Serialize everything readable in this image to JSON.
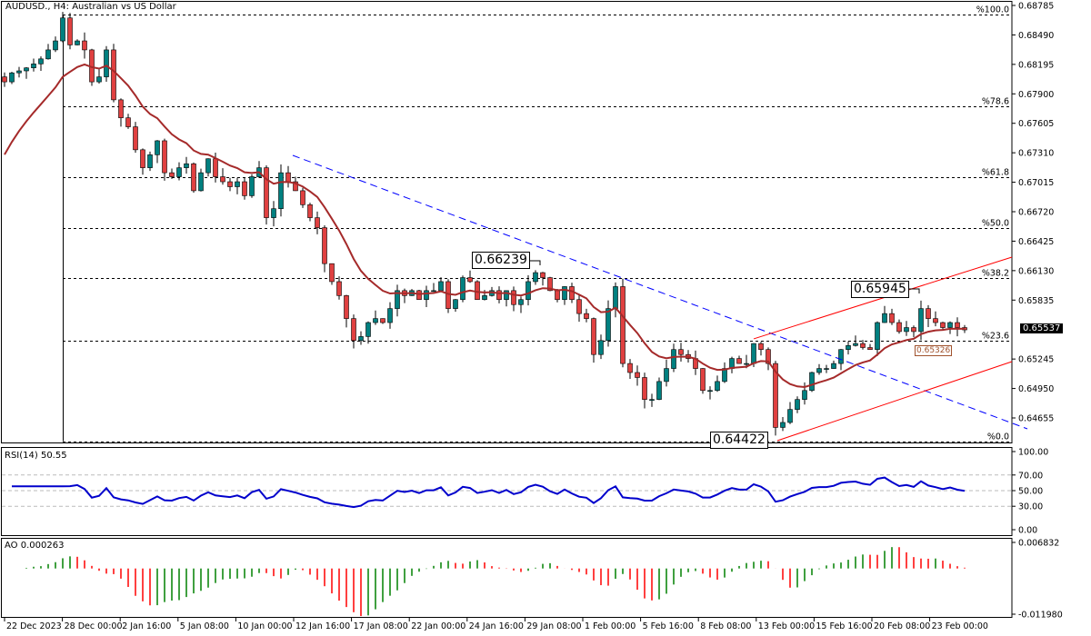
{
  "header": {
    "symbol": "AUDUSD.",
    "timeframe": "H4",
    "description": "Australian vs US Dollar",
    "title": "AUDUSD., H4:  Australian vs US Dollar"
  },
  "chart_data": [
    {
      "type": "candlestick",
      "title": "AUDUSD., H4:  Australian vs US Dollar",
      "ylim": [
        0.6442,
        0.68785
      ],
      "y_ticks": [
        "0.68785",
        "0.68490",
        "0.68195",
        "0.67900",
        "0.67605",
        "0.67310",
        "0.67015",
        "0.66720",
        "0.66425",
        "0.66130",
        "0.65835",
        "0.65245",
        "0.64950",
        "0.64655"
      ],
      "x_ticks": [
        "22 Dec 2023",
        "28 Dec 00:00",
        "2 Jan 16:00",
        "5 Jan 08:00",
        "10 Jan 00:00",
        "12 Jan 16:00",
        "17 Jan 08:00",
        "22 Jan 00:00",
        "24 Jan 16:00",
        "29 Jan 08:00",
        "1 Feb 00:00",
        "5 Feb 16:00",
        "8 Feb 08:00",
        "13 Feb 00:00",
        "15 Feb 16:00",
        "20 Feb 08:00",
        "23 Feb 00:00"
      ],
      "closes": [
        0.6802,
        0.6811,
        0.6813,
        0.6816,
        0.682,
        0.6825,
        0.6834,
        0.6843,
        0.6866,
        0.6839,
        0.6843,
        0.6834,
        0.6802,
        0.6807,
        0.6834,
        0.6784,
        0.6766,
        0.6757,
        0.6734,
        0.6716,
        0.6729,
        0.6743,
        0.6711,
        0.6707,
        0.6716,
        0.672,
        0.6693,
        0.6711,
        0.6725,
        0.6707,
        0.6702,
        0.6697,
        0.6702,
        0.6688,
        0.6707,
        0.6716,
        0.6666,
        0.6675,
        0.6711,
        0.6702,
        0.6693,
        0.6679,
        0.6666,
        0.6656,
        0.662,
        0.6602,
        0.6588,
        0.6565,
        0.6543,
        0.6547,
        0.6561,
        0.6565,
        0.6561,
        0.6575,
        0.6593,
        0.6588,
        0.6593,
        0.6584,
        0.6593,
        0.6593,
        0.6602,
        0.6575,
        0.6584,
        0.6606,
        0.6602,
        0.6584,
        0.6588,
        0.6593,
        0.6584,
        0.6593,
        0.6579,
        0.6584,
        0.6602,
        0.6611,
        0.6606,
        0.6593,
        0.6584,
        0.6597,
        0.6584,
        0.657,
        0.6565,
        0.6529,
        0.6543,
        0.6575,
        0.6597,
        0.652,
        0.6511,
        0.6506,
        0.6484,
        0.6484,
        0.6502,
        0.6515,
        0.6534,
        0.6529,
        0.6525,
        0.6515,
        0.6493,
        0.6493,
        0.6502,
        0.6515,
        0.6525,
        0.652,
        0.652,
        0.654,
        0.6534,
        0.652,
        0.6456,
        0.6461,
        0.6474,
        0.6484,
        0.6493,
        0.6511,
        0.6515,
        0.6515,
        0.652,
        0.6534,
        0.6538,
        0.654,
        0.6536,
        0.6534,
        0.6561,
        0.657,
        0.6561,
        0.6552,
        0.6556,
        0.6552,
        0.6575,
        0.6565,
        0.6561,
        0.6556,
        0.6561,
        0.6556,
        0.65537
      ],
      "current_price": "0.65537",
      "ma_value": "0.65326",
      "fibonacci": {
        "high": 0.68694,
        "low": 0.64422,
        "levels": [
          {
            "pct": 1.0,
            "label": "%100.0"
          },
          {
            "pct": 0.786,
            "label": "%78.6"
          },
          {
            "pct": 0.618,
            "label": "%61.8"
          },
          {
            "pct": 0.5,
            "label": "%50.0"
          },
          {
            "pct": 0.382,
            "label": "%38.2"
          },
          {
            "pct": 0.236,
            "label": "%23.6"
          },
          {
            "pct": 0.0,
            "label": "%0.0"
          }
        ]
      },
      "annotations": [
        "0.66239",
        "0.65945",
        "0.64422"
      ],
      "trendline_down": {
        "from": 0.67284,
        "to": 0.64546,
        "color": "#0000ff"
      },
      "channel_upper": {
        "from": 0.65447,
        "to": 0.66265,
        "color": "#ff0000"
      },
      "channel_lower": {
        "from": 0.64428,
        "to": 0.65219,
        "color": "#ff0000"
      },
      "colors": {
        "bull": "#008080",
        "bear": "#e04040",
        "ma": "#a52a2a"
      }
    },
    {
      "type": "line",
      "title": "RSI(14) 50.55",
      "ylim": [
        0,
        100
      ],
      "y_ticks": [
        "100.00",
        "70.00",
        "50.00",
        "30.00",
        "0.00"
      ],
      "levels": [
        70,
        50,
        30
      ],
      "last": "50.55",
      "color": "#0000cc"
    },
    {
      "type": "bar",
      "title": "AO 0.000263",
      "ylim": [
        -0.01198,
        0.006832
      ],
      "y_ticks": [
        "0.006832",
        "-0.011980"
      ],
      "last": "0.000263",
      "colors": {
        "up": "#008000",
        "down": "#ff0000"
      }
    }
  ]
}
